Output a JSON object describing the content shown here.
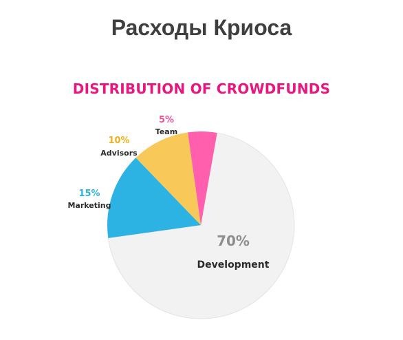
{
  "page": {
    "title": "Расходы Криоса"
  },
  "colors": {
    "title": "#3f3f3f",
    "chart_title": "#e8177f",
    "percent_inside": "#8e8e8e",
    "name_label": "#2b2b2b"
  },
  "chart_data": {
    "type": "pie",
    "title": "DISTRIBUTION OF CROWDFUNDS",
    "slices": [
      {
        "label": "Development",
        "value": 70,
        "percent_label": "70%",
        "color": "#f2f2f2",
        "label_color": "#8e8e8e"
      },
      {
        "label": "Marketing",
        "value": 15,
        "percent_label": "15%",
        "color": "#2db3e3",
        "label_color": "#2db3e3"
      },
      {
        "label": "Advisors",
        "value": 10,
        "percent_label": "10%",
        "color": "#f8c959",
        "label_color": "#f0b01c"
      },
      {
        "label": "Team",
        "value": 5,
        "percent_label": "5%",
        "color": "#ff5fac",
        "label_color": "#f0509a"
      }
    ]
  }
}
